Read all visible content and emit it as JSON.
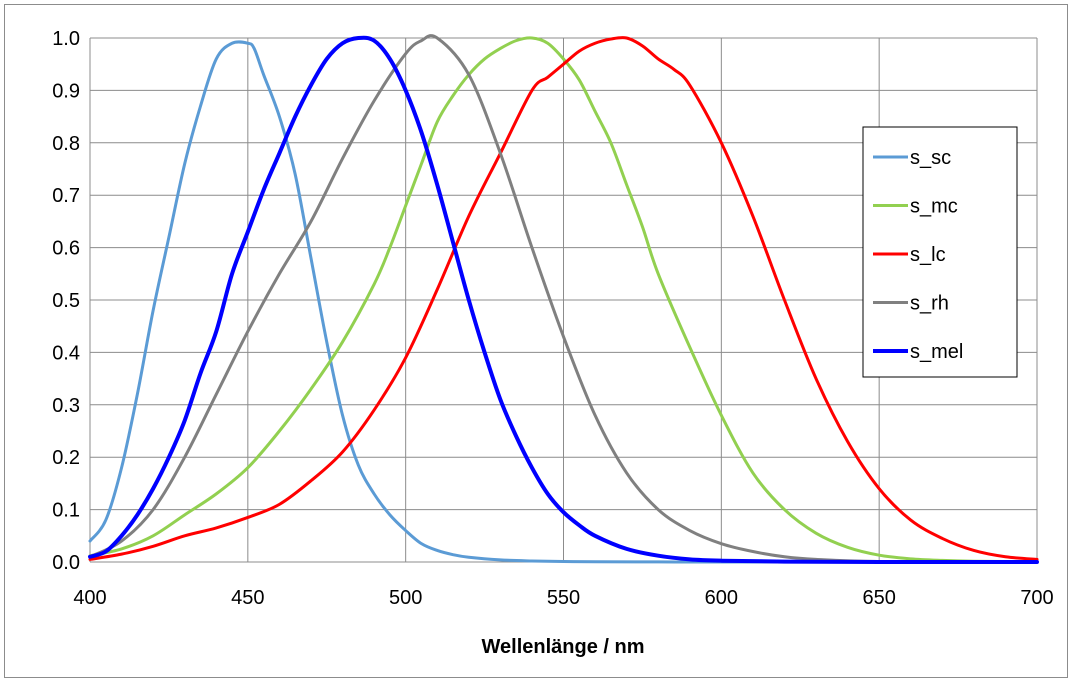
{
  "chart_data": {
    "type": "line",
    "title": "",
    "xlabel": "Wellenlänge / nm",
    "ylabel": "",
    "xlim": [
      400,
      700
    ],
    "ylim": [
      0,
      1.0
    ],
    "xticks": [
      400,
      450,
      500,
      550,
      600,
      650,
      700
    ],
    "xtick_labels": [
      "400",
      "450",
      "500",
      "550",
      "600",
      "650",
      "700"
    ],
    "yticks": [
      0.0,
      0.1,
      0.2,
      0.3,
      0.4,
      0.5,
      0.6,
      0.7,
      0.8,
      0.9,
      1.0
    ],
    "ytick_labels": [
      "0.0",
      "0.1",
      "0.2",
      "0.3",
      "0.4",
      "0.5",
      "0.6",
      "0.7",
      "0.8",
      "0.9",
      "1.0"
    ],
    "grid": true,
    "legend_position": "right",
    "series": [
      {
        "name": "s_sc",
        "color": "#5B9BD5",
        "x": [
          400,
          405,
          410,
          415,
          420,
          425,
          430,
          435,
          440,
          445,
          450,
          452,
          455,
          460,
          465,
          470,
          475,
          480,
          485,
          490,
          495,
          500,
          505,
          510,
          515,
          520,
          530,
          540,
          550,
          560,
          580,
          600,
          650,
          700
        ],
        "y": [
          0.04,
          0.08,
          0.18,
          0.32,
          0.48,
          0.62,
          0.76,
          0.87,
          0.96,
          0.99,
          0.99,
          0.98,
          0.93,
          0.85,
          0.74,
          0.58,
          0.42,
          0.28,
          0.185,
          0.13,
          0.09,
          0.06,
          0.035,
          0.022,
          0.014,
          0.009,
          0.004,
          0.002,
          0.001,
          0.0005,
          0.0002,
          0.0,
          0.0,
          0.0
        ]
      },
      {
        "name": "s_mc",
        "color": "#92D050",
        "x": [
          400,
          410,
          420,
          430,
          440,
          450,
          460,
          470,
          480,
          490,
          495,
          500,
          505,
          510,
          515,
          520,
          525,
          530,
          535,
          540,
          545,
          550,
          555,
          560,
          565,
          570,
          575,
          580,
          590,
          600,
          610,
          620,
          630,
          640,
          650,
          660,
          670,
          680,
          700
        ],
        "y": [
          0.012,
          0.025,
          0.05,
          0.09,
          0.13,
          0.18,
          0.25,
          0.33,
          0.42,
          0.53,
          0.6,
          0.68,
          0.76,
          0.84,
          0.89,
          0.93,
          0.96,
          0.98,
          0.995,
          1.0,
          0.99,
          0.96,
          0.92,
          0.86,
          0.8,
          0.72,
          0.64,
          0.55,
          0.41,
          0.28,
          0.17,
          0.1,
          0.055,
          0.028,
          0.013,
          0.006,
          0.003,
          0.0015,
          0.0005
        ]
      },
      {
        "name": "s_lc",
        "color": "#FF0000",
        "x": [
          400,
          410,
          420,
          430,
          440,
          450,
          460,
          470,
          480,
          490,
          500,
          510,
          520,
          530,
          540,
          545,
          550,
          555,
          560,
          565,
          570,
          575,
          580,
          585,
          590,
          600,
          610,
          620,
          630,
          640,
          650,
          660,
          670,
          680,
          690,
          700
        ],
        "y": [
          0.005,
          0.015,
          0.03,
          0.05,
          0.065,
          0.085,
          0.11,
          0.155,
          0.21,
          0.29,
          0.39,
          0.52,
          0.66,
          0.78,
          0.9,
          0.925,
          0.95,
          0.975,
          0.99,
          0.998,
          1.0,
          0.985,
          0.96,
          0.94,
          0.91,
          0.8,
          0.66,
          0.5,
          0.35,
          0.23,
          0.14,
          0.08,
          0.045,
          0.022,
          0.01,
          0.005
        ]
      },
      {
        "name": "s_rh",
        "color": "#808080",
        "x": [
          400,
          410,
          420,
          430,
          440,
          450,
          460,
          470,
          480,
          490,
          500,
          505,
          510,
          520,
          530,
          540,
          550,
          560,
          570,
          580,
          590,
          600,
          610,
          620,
          630,
          650,
          700
        ],
        "y": [
          0.01,
          0.04,
          0.1,
          0.2,
          0.32,
          0.44,
          0.55,
          0.65,
          0.77,
          0.88,
          0.97,
          0.995,
          1.0,
          0.93,
          0.78,
          0.6,
          0.43,
          0.28,
          0.17,
          0.1,
          0.06,
          0.035,
          0.02,
          0.01,
          0.005,
          0.001,
          0.0
        ]
      },
      {
        "name": "s_mel",
        "color": "#0000FF",
        "x": [
          400,
          405,
          410,
          415,
          420,
          425,
          430,
          435,
          440,
          445,
          450,
          455,
          460,
          465,
          470,
          475,
          480,
          485,
          490,
          495,
          500,
          505,
          510,
          515,
          520,
          525,
          530,
          535,
          540,
          545,
          550,
          555,
          560,
          570,
          580,
          590,
          600,
          620,
          650,
          700
        ],
        "y": [
          0.01,
          0.02,
          0.05,
          0.09,
          0.14,
          0.2,
          0.27,
          0.36,
          0.44,
          0.55,
          0.63,
          0.71,
          0.78,
          0.85,
          0.91,
          0.96,
          0.99,
          1.0,
          0.995,
          0.96,
          0.9,
          0.82,
          0.72,
          0.61,
          0.5,
          0.4,
          0.31,
          0.24,
          0.18,
          0.13,
          0.095,
          0.07,
          0.05,
          0.025,
          0.012,
          0.005,
          0.0025,
          0.0008,
          0.0001,
          0.0
        ]
      }
    ]
  }
}
